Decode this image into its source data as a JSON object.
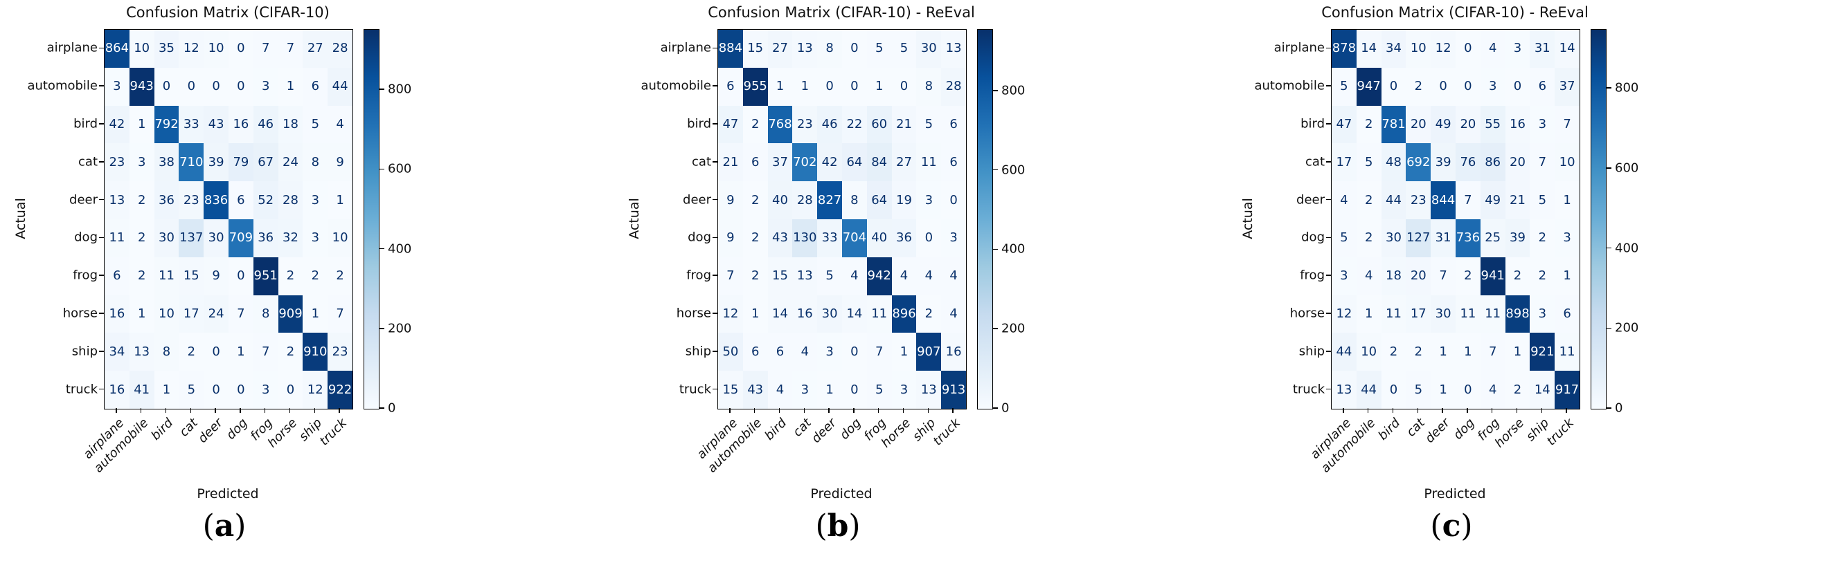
{
  "figure": {
    "ylabel": "Actual",
    "xlabel": "Predicted",
    "classes": [
      "airplane",
      "automobile",
      "bird",
      "cat",
      "deer",
      "dog",
      "frog",
      "horse",
      "ship",
      "truck"
    ],
    "colorbar_ticks": [
      0,
      200,
      400,
      600,
      800
    ],
    "colors": {
      "cmap_name": "Blues",
      "cmap_low": "#f7fbff",
      "cmap_high": "#08306b",
      "annotation_dark": "#08306b",
      "annotation_light": "#ffffff",
      "axis": "#000000"
    }
  },
  "chart_data": [
    {
      "type": "heatmap",
      "title": "Confusion Matrix (CIFAR-10)",
      "caption": "(a)",
      "caption_letter": "a",
      "xlabel": "Predicted",
      "ylabel": "Actual",
      "categories": [
        "airplane",
        "automobile",
        "bird",
        "cat",
        "deer",
        "dog",
        "frog",
        "horse",
        "ship",
        "truck"
      ],
      "colormap": "Blues",
      "vmin": 0,
      "colorbar_ticks": [
        0,
        200,
        400,
        600,
        800
      ],
      "values": [
        [
          864,
          10,
          35,
          12,
          10,
          0,
          7,
          7,
          27,
          28
        ],
        [
          3,
          943,
          0,
          0,
          0,
          0,
          3,
          1,
          6,
          44
        ],
        [
          42,
          1,
          792,
          33,
          43,
          16,
          46,
          18,
          5,
          4
        ],
        [
          23,
          3,
          38,
          710,
          39,
          79,
          67,
          24,
          8,
          9
        ],
        [
          13,
          2,
          36,
          23,
          836,
          6,
          52,
          28,
          3,
          1
        ],
        [
          11,
          2,
          30,
          137,
          30,
          709,
          36,
          32,
          3,
          10
        ],
        [
          6,
          2,
          11,
          15,
          9,
          0,
          951,
          2,
          2,
          2
        ],
        [
          16,
          1,
          10,
          17,
          24,
          7,
          8,
          909,
          1,
          7
        ],
        [
          34,
          13,
          8,
          2,
          0,
          1,
          7,
          2,
          910,
          23
        ],
        [
          16,
          41,
          1,
          5,
          0,
          0,
          3,
          0,
          12,
          922
        ]
      ]
    },
    {
      "type": "heatmap",
      "title": "Confusion Matrix (CIFAR-10) - ReEval",
      "caption": "(b)",
      "caption_letter": "b",
      "xlabel": "Predicted",
      "ylabel": "Actual",
      "categories": [
        "airplane",
        "automobile",
        "bird",
        "cat",
        "deer",
        "dog",
        "frog",
        "horse",
        "ship",
        "truck"
      ],
      "colormap": "Blues",
      "vmin": 0,
      "colorbar_ticks": [
        0,
        200,
        400,
        600,
        800
      ],
      "values": [
        [
          884,
          15,
          27,
          13,
          8,
          0,
          5,
          5,
          30,
          13
        ],
        [
          6,
          955,
          1,
          1,
          0,
          0,
          1,
          0,
          8,
          28
        ],
        [
          47,
          2,
          768,
          23,
          46,
          22,
          60,
          21,
          5,
          6
        ],
        [
          21,
          6,
          37,
          702,
          42,
          64,
          84,
          27,
          11,
          6
        ],
        [
          9,
          2,
          40,
          28,
          827,
          8,
          64,
          19,
          3,
          0
        ],
        [
          9,
          2,
          43,
          130,
          33,
          704,
          40,
          36,
          0,
          3
        ],
        [
          7,
          2,
          15,
          13,
          5,
          4,
          942,
          4,
          4,
          4
        ],
        [
          12,
          1,
          14,
          16,
          30,
          14,
          11,
          896,
          2,
          4
        ],
        [
          50,
          6,
          6,
          4,
          3,
          0,
          7,
          1,
          907,
          16
        ],
        [
          15,
          43,
          4,
          3,
          1,
          0,
          5,
          3,
          13,
          913
        ]
      ]
    },
    {
      "type": "heatmap",
      "title": "Confusion Matrix (CIFAR-10) - ReEval",
      "caption": "(c)",
      "caption_letter": "c",
      "xlabel": "Predicted",
      "ylabel": "Actual",
      "categories": [
        "airplane",
        "automobile",
        "bird",
        "cat",
        "deer",
        "dog",
        "frog",
        "horse",
        "ship",
        "truck"
      ],
      "colormap": "Blues",
      "vmin": 0,
      "colorbar_ticks": [
        0,
        200,
        400,
        600,
        800
      ],
      "values": [
        [
          878,
          14,
          34,
          10,
          12,
          0,
          4,
          3,
          31,
          14
        ],
        [
          5,
          947,
          0,
          2,
          0,
          0,
          3,
          0,
          6,
          37
        ],
        [
          47,
          2,
          781,
          20,
          49,
          20,
          55,
          16,
          3,
          7
        ],
        [
          17,
          5,
          48,
          692,
          39,
          76,
          86,
          20,
          7,
          10
        ],
        [
          4,
          2,
          44,
          23,
          844,
          7,
          49,
          21,
          5,
          1
        ],
        [
          5,
          2,
          30,
          127,
          31,
          736,
          25,
          39,
          2,
          3
        ],
        [
          3,
          4,
          18,
          20,
          7,
          2,
          941,
          2,
          2,
          1
        ],
        [
          12,
          1,
          11,
          17,
          30,
          11,
          11,
          898,
          3,
          6
        ],
        [
          44,
          10,
          2,
          2,
          1,
          1,
          7,
          1,
          921,
          11
        ],
        [
          13,
          44,
          0,
          5,
          1,
          0,
          4,
          2,
          14,
          917
        ]
      ]
    }
  ]
}
